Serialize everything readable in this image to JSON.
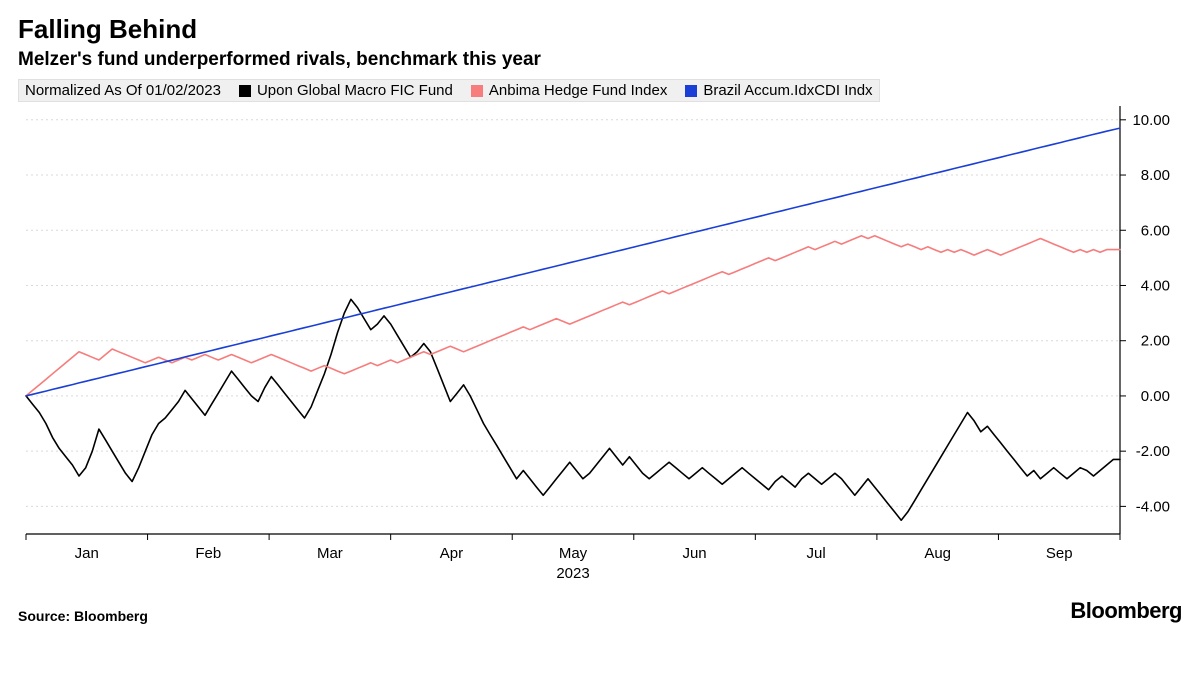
{
  "title": "Falling Behind",
  "subtitle": "Melzer's fund underperformed rivals, benchmark this year",
  "normalized_label": "Normalized As Of 01/02/2023",
  "source": "Source: Bloomberg",
  "brand": "Bloomberg",
  "x_year_label": "2023",
  "chart": {
    "type": "line",
    "background_color": "#ffffff",
    "grid_color": "#d9d9d9",
    "axis_color": "#333333",
    "tick_font_size": 15,
    "ylim": [
      -5.0,
      10.5
    ],
    "yticks": [
      -4.0,
      -2.0,
      0.0,
      2.0,
      4.0,
      6.0,
      8.0,
      10.0
    ],
    "ytick_labels": [
      "-4.00",
      "-2.00",
      "0.00",
      "2.00",
      "4.00",
      "6.00",
      "8.00",
      "10.00"
    ],
    "x_months": [
      "Jan",
      "Feb",
      "Mar",
      "Apr",
      "May",
      "Jun",
      "Jul",
      "Aug",
      "Sep"
    ],
    "line_width": 1.6,
    "series": [
      {
        "name": "Upon Global Macro FIC Fund",
        "color": "#000000",
        "data": [
          0.0,
          -0.3,
          -0.6,
          -1.0,
          -1.5,
          -1.9,
          -2.2,
          -2.5,
          -2.9,
          -2.6,
          -2.0,
          -1.2,
          -1.6,
          -2.0,
          -2.4,
          -2.8,
          -3.1,
          -2.6,
          -2.0,
          -1.4,
          -1.0,
          -0.8,
          -0.5,
          -0.2,
          0.2,
          -0.1,
          -0.4,
          -0.7,
          -0.3,
          0.1,
          0.5,
          0.9,
          0.6,
          0.3,
          0.0,
          -0.2,
          0.3,
          0.7,
          0.4,
          0.1,
          -0.2,
          -0.5,
          -0.8,
          -0.4,
          0.2,
          0.8,
          1.5,
          2.3,
          3.0,
          3.5,
          3.2,
          2.8,
          2.4,
          2.6,
          2.9,
          2.6,
          2.2,
          1.8,
          1.4,
          1.6,
          1.9,
          1.6,
          1.0,
          0.4,
          -0.2,
          0.1,
          0.4,
          0.0,
          -0.5,
          -1.0,
          -1.4,
          -1.8,
          -2.2,
          -2.6,
          -3.0,
          -2.7,
          -3.0,
          -3.3,
          -3.6,
          -3.3,
          -3.0,
          -2.7,
          -2.4,
          -2.7,
          -3.0,
          -2.8,
          -2.5,
          -2.2,
          -1.9,
          -2.2,
          -2.5,
          -2.2,
          -2.5,
          -2.8,
          -3.0,
          -2.8,
          -2.6,
          -2.4,
          -2.6,
          -2.8,
          -3.0,
          -2.8,
          -2.6,
          -2.8,
          -3.0,
          -3.2,
          -3.0,
          -2.8,
          -2.6,
          -2.8,
          -3.0,
          -3.2,
          -3.4,
          -3.1,
          -2.9,
          -3.1,
          -3.3,
          -3.0,
          -2.8,
          -3.0,
          -3.2,
          -3.0,
          -2.8,
          -3.0,
          -3.3,
          -3.6,
          -3.3,
          -3.0,
          -3.3,
          -3.6,
          -3.9,
          -4.2,
          -4.5,
          -4.2,
          -3.8,
          -3.4,
          -3.0,
          -2.6,
          -2.2,
          -1.8,
          -1.4,
          -1.0,
          -0.6,
          -0.9,
          -1.3,
          -1.1,
          -1.4,
          -1.7,
          -2.0,
          -2.3,
          -2.6,
          -2.9,
          -2.7,
          -3.0,
          -2.8,
          -2.6,
          -2.8,
          -3.0,
          -2.8,
          -2.6,
          -2.7,
          -2.9,
          -2.7,
          -2.5,
          -2.3,
          -2.3
        ]
      },
      {
        "name": "Anbima Hedge Fund Index",
        "color": "#f77c7c",
        "data": [
          0.0,
          0.2,
          0.4,
          0.6,
          0.8,
          1.0,
          1.2,
          1.4,
          1.6,
          1.5,
          1.4,
          1.3,
          1.5,
          1.7,
          1.6,
          1.5,
          1.4,
          1.3,
          1.2,
          1.3,
          1.4,
          1.3,
          1.2,
          1.3,
          1.4,
          1.3,
          1.4,
          1.5,
          1.4,
          1.3,
          1.4,
          1.5,
          1.4,
          1.3,
          1.2,
          1.3,
          1.4,
          1.5,
          1.4,
          1.3,
          1.2,
          1.1,
          1.0,
          0.9,
          1.0,
          1.1,
          1.0,
          0.9,
          0.8,
          0.9,
          1.0,
          1.1,
          1.2,
          1.1,
          1.2,
          1.3,
          1.2,
          1.3,
          1.4,
          1.5,
          1.6,
          1.5,
          1.6,
          1.7,
          1.8,
          1.7,
          1.6,
          1.7,
          1.8,
          1.9,
          2.0,
          2.1,
          2.2,
          2.3,
          2.4,
          2.5,
          2.4,
          2.5,
          2.6,
          2.7,
          2.8,
          2.7,
          2.6,
          2.7,
          2.8,
          2.9,
          3.0,
          3.1,
          3.2,
          3.3,
          3.4,
          3.3,
          3.4,
          3.5,
          3.6,
          3.7,
          3.8,
          3.7,
          3.8,
          3.9,
          4.0,
          4.1,
          4.2,
          4.3,
          4.4,
          4.5,
          4.4,
          4.5,
          4.6,
          4.7,
          4.8,
          4.9,
          5.0,
          4.9,
          5.0,
          5.1,
          5.2,
          5.3,
          5.4,
          5.3,
          5.4,
          5.5,
          5.6,
          5.5,
          5.6,
          5.7,
          5.8,
          5.7,
          5.8,
          5.7,
          5.6,
          5.5,
          5.4,
          5.5,
          5.4,
          5.3,
          5.4,
          5.3,
          5.2,
          5.3,
          5.2,
          5.3,
          5.2,
          5.1,
          5.2,
          5.3,
          5.2,
          5.1,
          5.2,
          5.3,
          5.4,
          5.5,
          5.6,
          5.7,
          5.6,
          5.5,
          5.4,
          5.3,
          5.2,
          5.3,
          5.2,
          5.3,
          5.2,
          5.3,
          5.3,
          5.3
        ]
      },
      {
        "name": "Brazil Accum.IdxCDI Indx",
        "color": "#1a3fd6",
        "data": [
          0.0,
          0.059,
          0.118,
          0.176,
          0.235,
          0.294,
          0.353,
          0.412,
          0.471,
          0.529,
          0.588,
          0.647,
          0.706,
          0.765,
          0.824,
          0.882,
          0.941,
          1.0,
          1.059,
          1.118,
          1.176,
          1.235,
          1.294,
          1.353,
          1.412,
          1.471,
          1.529,
          1.588,
          1.647,
          1.706,
          1.765,
          1.824,
          1.882,
          1.941,
          2.0,
          2.059,
          2.118,
          2.176,
          2.235,
          2.294,
          2.353,
          2.412,
          2.471,
          2.529,
          2.588,
          2.647,
          2.706,
          2.765,
          2.824,
          2.882,
          2.941,
          3.0,
          3.059,
          3.118,
          3.176,
          3.235,
          3.294,
          3.353,
          3.412,
          3.471,
          3.529,
          3.588,
          3.647,
          3.706,
          3.765,
          3.824,
          3.882,
          3.941,
          4.0,
          4.059,
          4.118,
          4.176,
          4.235,
          4.294,
          4.353,
          4.412,
          4.471,
          4.529,
          4.588,
          4.647,
          4.706,
          4.765,
          4.824,
          4.882,
          4.941,
          5.0,
          5.059,
          5.118,
          5.176,
          5.235,
          5.294,
          5.353,
          5.412,
          5.471,
          5.529,
          5.588,
          5.647,
          5.706,
          5.765,
          5.824,
          5.882,
          5.941,
          6.0,
          6.059,
          6.118,
          6.176,
          6.235,
          6.294,
          6.353,
          6.412,
          6.471,
          6.529,
          6.588,
          6.647,
          6.706,
          6.765,
          6.824,
          6.882,
          6.941,
          7.0,
          7.059,
          7.118,
          7.176,
          7.235,
          7.294,
          7.353,
          7.412,
          7.471,
          7.529,
          7.588,
          7.647,
          7.706,
          7.765,
          7.824,
          7.882,
          7.941,
          8.0,
          8.059,
          8.118,
          8.176,
          8.235,
          8.294,
          8.353,
          8.412,
          8.471,
          8.529,
          8.588,
          8.647,
          8.706,
          8.765,
          8.824,
          8.882,
          8.941,
          9.0,
          9.059,
          9.118,
          9.176,
          9.235,
          9.294,
          9.353,
          9.412,
          9.471,
          9.529,
          9.588,
          9.647,
          9.7
        ]
      }
    ]
  }
}
